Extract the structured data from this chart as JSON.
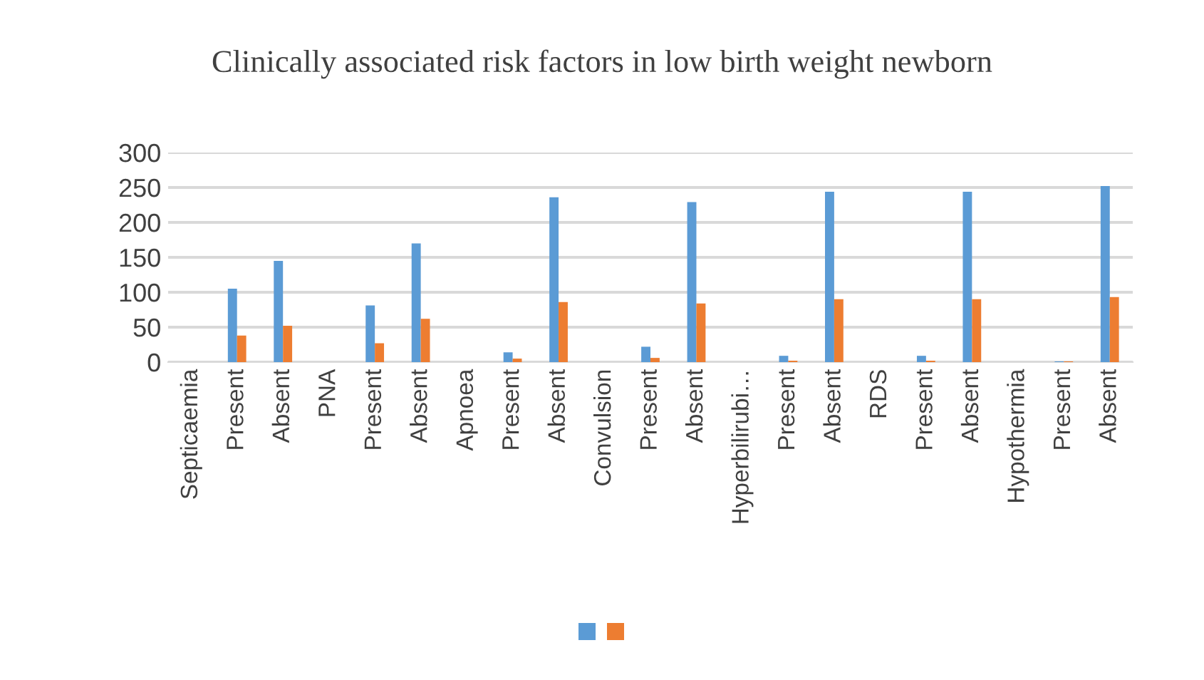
{
  "chart_data": {
    "type": "bar",
    "title": "Clinically associated risk factors in low birth weight newborn",
    "categories": [
      "Septicaemia",
      "Present",
      "Absent",
      "PNA",
      "Present",
      "Absent",
      "Apnoea",
      "Present",
      "Absent",
      "Convulsion",
      "Present",
      "Absent",
      "Hyperbilirubi…",
      "Present",
      "Absent",
      "RDS",
      "Present",
      "Absent",
      "Hypothermia",
      "Present",
      "Absent"
    ],
    "series": [
      {
        "color": "#5b9bd5",
        "values": [
          null,
          105,
          145,
          null,
          81,
          170,
          null,
          14,
          236,
          null,
          22,
          229,
          null,
          9,
          244,
          null,
          9,
          244,
          null,
          1,
          252
        ]
      },
      {
        "color": "#ed7d31",
        "values": [
          null,
          38,
          52,
          null,
          27,
          62,
          null,
          5,
          86,
          null,
          6,
          84,
          null,
          2,
          90,
          null,
          2,
          90,
          null,
          1,
          93
        ]
      }
    ],
    "ylim": [
      0,
      300
    ],
    "yticks": [
      0,
      50,
      100,
      150,
      200,
      250,
      300
    ],
    "grid": "y"
  }
}
